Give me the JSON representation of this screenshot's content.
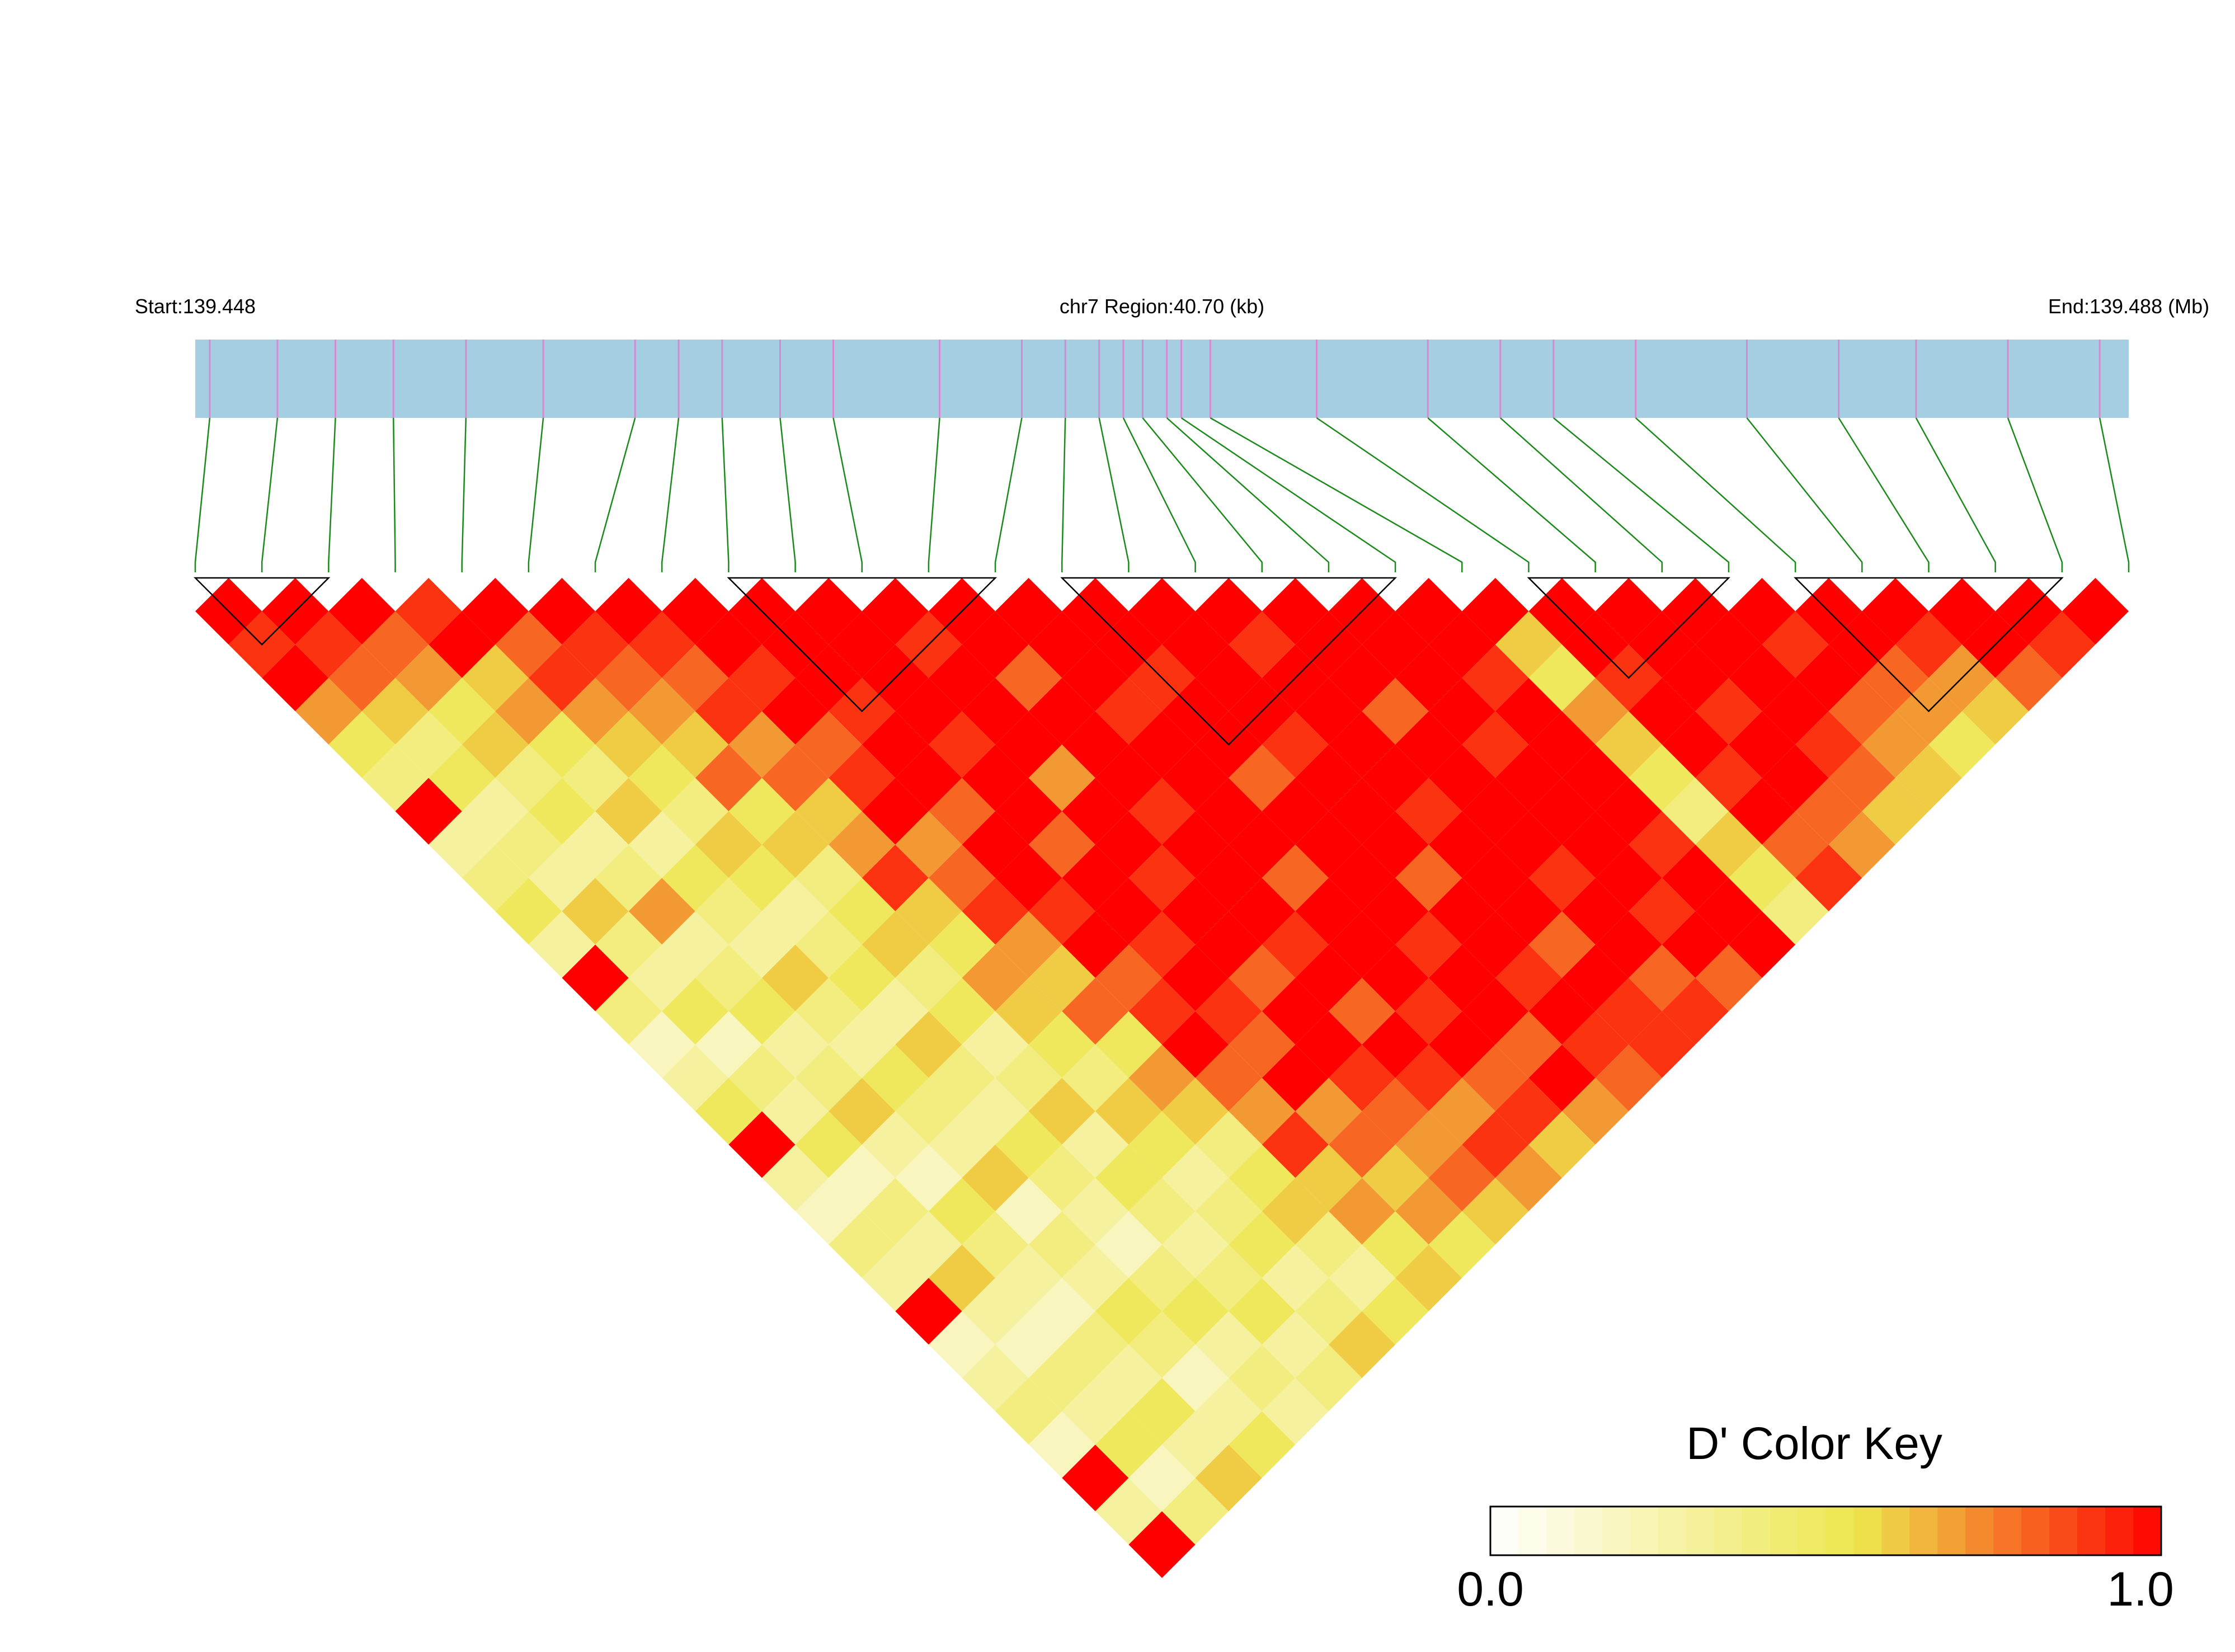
{
  "chart_data": {
    "type": "ld_heatmap",
    "start_label": "Start:139.448",
    "region_label": "chr7 Region:40.70 (kb)",
    "end_label": "End:139.488 (Mb)",
    "xlim": [
      139.448,
      139.488
    ],
    "snp_positions": [
      139.4483,
      139.4497,
      139.4509,
      139.4521,
      139.4536,
      139.4552,
      139.4571,
      139.458,
      139.4589,
      139.4601,
      139.4612,
      139.4634,
      139.4651,
      139.466,
      139.4667,
      139.4672,
      139.4676,
      139.4681,
      139.4684,
      139.469,
      139.4712,
      139.4735,
      139.475,
      139.4761,
      139.4778,
      139.4801,
      139.482,
      139.4836,
      139.4855,
      139.4874
    ],
    "bar_color": "#a6cee3",
    "tick_color": "#d48ccf",
    "connector_color": "#1a8a1a",
    "matrix": [
      [
        1,
        0.9,
        1,
        0.7,
        0.5,
        0.4,
        1,
        0.3,
        0.4,
        0.5,
        0.3,
        1,
        0.4,
        0.2,
        0.3,
        0.5,
        1,
        0.3,
        0.2,
        0.4,
        0.3,
        1,
        0.2,
        0.3,
        0.4,
        0.2,
        1,
        0.3,
        1
      ],
      [
        1,
        0.9,
        0.8,
        0.6,
        0.4,
        0.5,
        0.3,
        0.4,
        0.3,
        0.6,
        0.4,
        0.3,
        0.5,
        0.2,
        0.4,
        0.3,
        0.5,
        0.2,
        0.4,
        0.3,
        0.6,
        0.3,
        0.2,
        0.4,
        0.3,
        0.5,
        0.2,
        0.4
      ],
      [
        1,
        0.8,
        0.7,
        0.5,
        0.6,
        0.4,
        0.5,
        0.3,
        0.4,
        0.7,
        0.3,
        0.4,
        0.5,
        0.3,
        0.4,
        0.6,
        0.3,
        0.2,
        0.5,
        0.4,
        0.3,
        0.2,
        0.4,
        0.3,
        0.5,
        0.3,
        0.6
      ],
      [
        0.9,
        1,
        0.6,
        0.7,
        0.5,
        0.4,
        0.6,
        0.3,
        0.5,
        0.4,
        0.3,
        0.6,
        0.4,
        0.3,
        0.5,
        0.4,
        0.3,
        0.6,
        0.2,
        0.4,
        0.3,
        0.5,
        0.4,
        0.2,
        0.3,
        0.5
      ],
      [
        1,
        0.8,
        0.9,
        0.7,
        0.6,
        0.5,
        0.4,
        0.6,
        0.5,
        0.3,
        0.4,
        0.5,
        0.3,
        0.6,
        0.4,
        0.3,
        0.5,
        0.4,
        0.3,
        0.2,
        0.4,
        0.5,
        0.3,
        0.4,
        0.3
      ],
      [
        1,
        0.9,
        0.8,
        0.7,
        0.6,
        0.8,
        0.5,
        0.6,
        0.4,
        0.5,
        0.6,
        0.4,
        0.5,
        0.3,
        0.4,
        0.6,
        0.3,
        0.5,
        0.4,
        0.3,
        0.4,
        0.5,
        0.3,
        0.4
      ],
      [
        1,
        0.9,
        0.8,
        0.9,
        0.7,
        0.8,
        0.6,
        0.7,
        0.9,
        0.6,
        0.5,
        0.7,
        0.6,
        0.5,
        0.4,
        0.6,
        0.5,
        0.3,
        0.4,
        0.5,
        0.3,
        0.4,
        0.6
      ],
      [
        1,
        1,
        0.9,
        1,
        0.8,
        0.9,
        1,
        0.7,
        0.8,
        0.9,
        0.7,
        0.6,
        0.8,
        0.5,
        0.7,
        0.6,
        0.4,
        0.5,
        0.6,
        0.4,
        0.3,
        0.5
      ],
      [
        1,
        1,
        1,
        0.9,
        1,
        1,
        0.8,
        1,
        1,
        0.9,
        1,
        0.8,
        0.9,
        1,
        0.8,
        0.7,
        0.9,
        0.6,
        0.7,
        0.5,
        0.6
      ],
      [
        1,
        1,
        1,
        1,
        0.9,
        1,
        1,
        0.8,
        1,
        1,
        0.9,
        1,
        0.9,
        0.8,
        1,
        0.7,
        0.8,
        0.6,
        0.7,
        0.5
      ],
      [
        1,
        0.9,
        1,
        1,
        1,
        0.7,
        1,
        1,
        0.9,
        1,
        1,
        0.8,
        1,
        1,
        0.9,
        0.8,
        0.7,
        0.8,
        0.6
      ],
      [
        1,
        1,
        0.8,
        1,
        1,
        1,
        0.9,
        1,
        1,
        1,
        0.9,
        1,
        0.8,
        1,
        0.9,
        0.7,
        0.9,
        0.7
      ],
      [
        1,
        1,
        1,
        0.9,
        1,
        1,
        1,
        1,
        0.8,
        1,
        1,
        1,
        0.9,
        1,
        0.8,
        0.9,
        0.6
      ],
      [
        1,
        1,
        0.9,
        1,
        1,
        0.8,
        1,
        1,
        1,
        1,
        0.9,
        1,
        1,
        0.8,
        1,
        0.7
      ],
      [
        1,
        1,
        1,
        1,
        0.9,
        1,
        1,
        1,
        0.8,
        1,
        1,
        0.9,
        1,
        0.9,
        0.8
      ],
      [
        1,
        0.9,
        1,
        1,
        1,
        1,
        0.9,
        1,
        1,
        1,
        0.8,
        1,
        0.9,
        0.9
      ],
      [
        1,
        1,
        1,
        0.8,
        1,
        1,
        1,
        1,
        0.9,
        1,
        1,
        0.8,
        0.9
      ],
      [
        1,
        1,
        1,
        1,
        0.9,
        1,
        1,
        1,
        1,
        0.9,
        1,
        0.8
      ],
      [
        1,
        1,
        0.9,
        1,
        1,
        1,
        1,
        0.9,
        1,
        1,
        1
      ],
      [
        1,
        0.6,
        0.5,
        0.7,
        0.6,
        0.5,
        0.4,
        0.6,
        0.5,
        0.4
      ],
      [
        1,
        1,
        0.9,
        1,
        1,
        0.9,
        1,
        0.8,
        0.9
      ],
      [
        1,
        1,
        1,
        0.9,
        1,
        1,
        0.8,
        0.7
      ],
      [
        1,
        1,
        1,
        1,
        0.9,
        0.8,
        0.6
      ],
      [
        1,
        0.9,
        1,
        0.8,
        0.7,
        0.6
      ],
      [
        1,
        1,
        0.8,
        0.7,
        0.5
      ],
      [
        1,
        0.9,
        0.7,
        0.6
      ],
      [
        1,
        1,
        0.8
      ],
      [
        1,
        0.9
      ],
      [
        1
      ]
    ],
    "blocks": [
      [
        0,
        2
      ],
      [
        8,
        12
      ],
      [
        13,
        18
      ],
      [
        20,
        23
      ],
      [
        24,
        28
      ]
    ],
    "color_stops": [
      [
        0,
        "#ffffff"
      ],
      [
        0.55,
        "#ede64d"
      ],
      [
        1,
        "#ff0000"
      ]
    ],
    "key_title": "D' Color Key",
    "key_lim": [
      0,
      1
    ],
    "key_ticks": [
      {
        "value": 0,
        "label": "0.0"
      },
      {
        "value": 1,
        "label": "1.0"
      }
    ]
  }
}
